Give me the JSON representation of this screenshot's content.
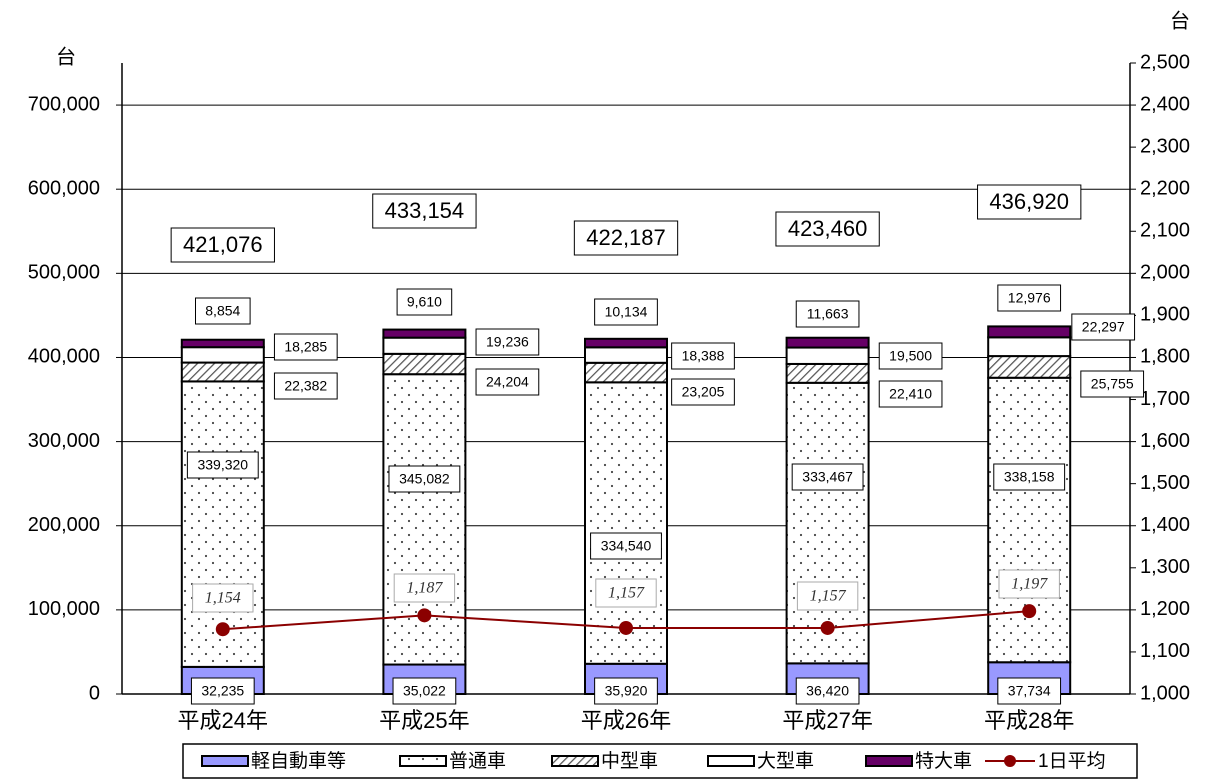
{
  "chart_data": {
    "type": "stacked_bar_line",
    "y_unit": "台",
    "y2_unit": "台",
    "categories": [
      "平成24年",
      "平成25年",
      "平成26年",
      "平成27年",
      "平成28年"
    ],
    "series": [
      {
        "name": "軽自動車等",
        "color": "#9999ff",
        "values": [
          32235,
          35022,
          35920,
          36420,
          37734
        ],
        "value_labels": [
          "32,235",
          "35,022",
          "35,920",
          "36,420",
          "37,734"
        ]
      },
      {
        "name": "普通車",
        "color": "#ffffff",
        "pattern": "dots",
        "values": [
          339320,
          345082,
          334540,
          333467,
          338158
        ],
        "value_labels": [
          "339,320",
          "345,082",
          "334,540",
          "333,467",
          "338,158"
        ]
      },
      {
        "name": "中型車",
        "color": "#ffffff",
        "pattern": "hatch",
        "values": [
          22382,
          24204,
          23205,
          22410,
          25755
        ],
        "value_labels": [
          "22,382",
          "24,204",
          "23,205",
          "22,410",
          "25,755"
        ]
      },
      {
        "name": "大型車",
        "color": "#ffffff",
        "values": [
          18285,
          19236,
          18388,
          19500,
          22297
        ],
        "value_labels": [
          "18,285",
          "19,236",
          "18,388",
          "19,500",
          "22,297"
        ]
      },
      {
        "name": "特大車",
        "color": "#660066",
        "values": [
          8854,
          9610,
          10134,
          11663,
          12976
        ],
        "value_labels": [
          "8,854",
          "9,610",
          "10,134",
          "11,663",
          "12,976"
        ]
      },
      {
        "name": "1日平均",
        "color": "#8b0000",
        "type": "line",
        "axis": "y2",
        "values": [
          1154,
          1187,
          1157,
          1157,
          1197
        ],
        "value_labels": [
          "1,154",
          "1,187",
          "1,157",
          "1,157",
          "1,197"
        ]
      }
    ],
    "totals": [
      421076,
      433154,
      422187,
      423460,
      436920
    ],
    "total_labels": [
      "421,076",
      "433,154",
      "422,187",
      "423,460",
      "436,920"
    ],
    "ylim": [
      0,
      750000
    ],
    "yticks": [
      0,
      {
        "value": 100000,
        "label": "100,000"
      },
      {
        "value": 200000,
        "label": "200,000"
      },
      {
        "value": 300000,
        "label": "300,000"
      },
      {
        "value": 400000,
        "label": "400,000"
      },
      {
        "value": 500000,
        "label": "500,000"
      },
      {
        "value": 600000,
        "label": "600,000"
      },
      {
        "value": 700000,
        "label": "700,000"
      }
    ],
    "y2lim": [
      1000,
      2500
    ],
    "y2ticks": [
      {
        "value": 1000,
        "label": "1,000"
      },
      {
        "value": 1100,
        "label": "1,100"
      },
      {
        "value": 1200,
        "label": "1,200"
      },
      {
        "value": 1300,
        "label": "1,300"
      },
      {
        "value": 1400,
        "label": "1,400"
      },
      {
        "value": 1500,
        "label": "1,500"
      },
      {
        "value": 1600,
        "label": "1,600"
      },
      {
        "value": 1700,
        "label": "1,700"
      },
      {
        "value": 1800,
        "label": "1,800"
      },
      {
        "value": 1900,
        "label": "1,900"
      },
      {
        "value": 2000,
        "label": "2,000"
      },
      {
        "value": 2100,
        "label": "2,100"
      },
      {
        "value": 2200,
        "label": "2,200"
      },
      {
        "value": 2300,
        "label": "2,300"
      },
      {
        "value": 2400,
        "label": "2,400"
      },
      {
        "value": 2500,
        "label": "2,500"
      }
    ],
    "grid": true,
    "legend": "bottom"
  }
}
